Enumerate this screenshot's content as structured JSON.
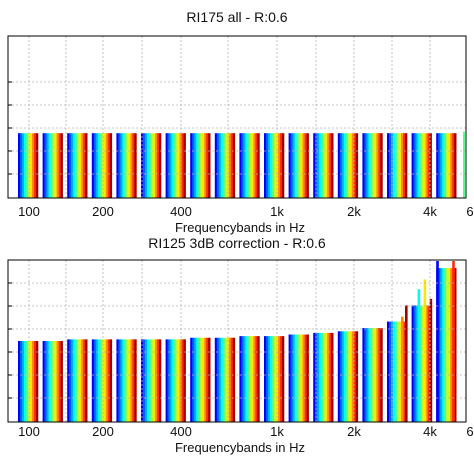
{
  "chart_data": [
    {
      "type": "bar",
      "title": "RI175 all - R:0.6",
      "xlabel": "Frequencybands in Hz",
      "ylabel": "",
      "x_tick_labels": [
        "100",
        "200",
        "400",
        "1k",
        "2k",
        "4k",
        "6"
      ],
      "grid": true,
      "legend": "none",
      "categories": [
        "100",
        "125",
        "160",
        "200",
        "250",
        "315",
        "400",
        "500",
        "630",
        "800",
        "1k",
        "1.25k",
        "1.6k",
        "2k",
        "2.5k",
        "3.15k",
        "4k",
        "5k"
      ],
      "ylim": [
        0,
        1
      ],
      "values": [
        0.4,
        0.4,
        0.4,
        0.4,
        0.4,
        0.4,
        0.4,
        0.4,
        0.4,
        0.4,
        0.4,
        0.4,
        0.4,
        0.4,
        0.4,
        0.4,
        0.4,
        0.4
      ],
      "extra_value": 0.41,
      "colormap": [
        "#0000ff",
        "#0060ff",
        "#00b0ff",
        "#00ffee",
        "#50ff90",
        "#c0ff30",
        "#ffe600",
        "#ff8c00",
        "#ff2a00",
        "#a00000"
      ]
    },
    {
      "type": "bar",
      "title": "RI125 3dB correction - R:0.6",
      "xlabel": "Frequencybands in Hz",
      "ylabel": "",
      "x_tick_labels": [
        "100",
        "200",
        "400",
        "1k",
        "2k",
        "4k",
        "6"
      ],
      "grid": true,
      "legend": "none",
      "categories": [
        "100",
        "125",
        "160",
        "200",
        "250",
        "315",
        "400",
        "500",
        "630",
        "800",
        "1k",
        "1.25k",
        "1.6k",
        "2k",
        "2.5k",
        "3.15k",
        "4k",
        "5k"
      ],
      "ylim": [
        0,
        1
      ],
      "values": [
        0.5,
        0.5,
        0.51,
        0.51,
        0.51,
        0.51,
        0.51,
        0.52,
        0.52,
        0.53,
        0.53,
        0.54,
        0.55,
        0.56,
        0.58,
        0.62,
        0.72,
        0.95
      ],
      "spikes": [
        [
          15,
          7,
          0.65
        ],
        [
          15,
          9,
          0.72
        ],
        [
          16,
          3,
          0.82
        ],
        [
          16,
          6,
          0.88
        ],
        [
          16,
          9,
          0.76
        ],
        [
          17,
          0,
          1.0
        ],
        [
          17,
          5,
          0.92
        ],
        [
          17,
          8,
          1.0
        ]
      ],
      "colormap": [
        "#0000ff",
        "#0060ff",
        "#00b0ff",
        "#00ffee",
        "#50ff90",
        "#c0ff30",
        "#ffe600",
        "#ff8c00",
        "#ff2a00",
        "#a00000"
      ]
    }
  ]
}
